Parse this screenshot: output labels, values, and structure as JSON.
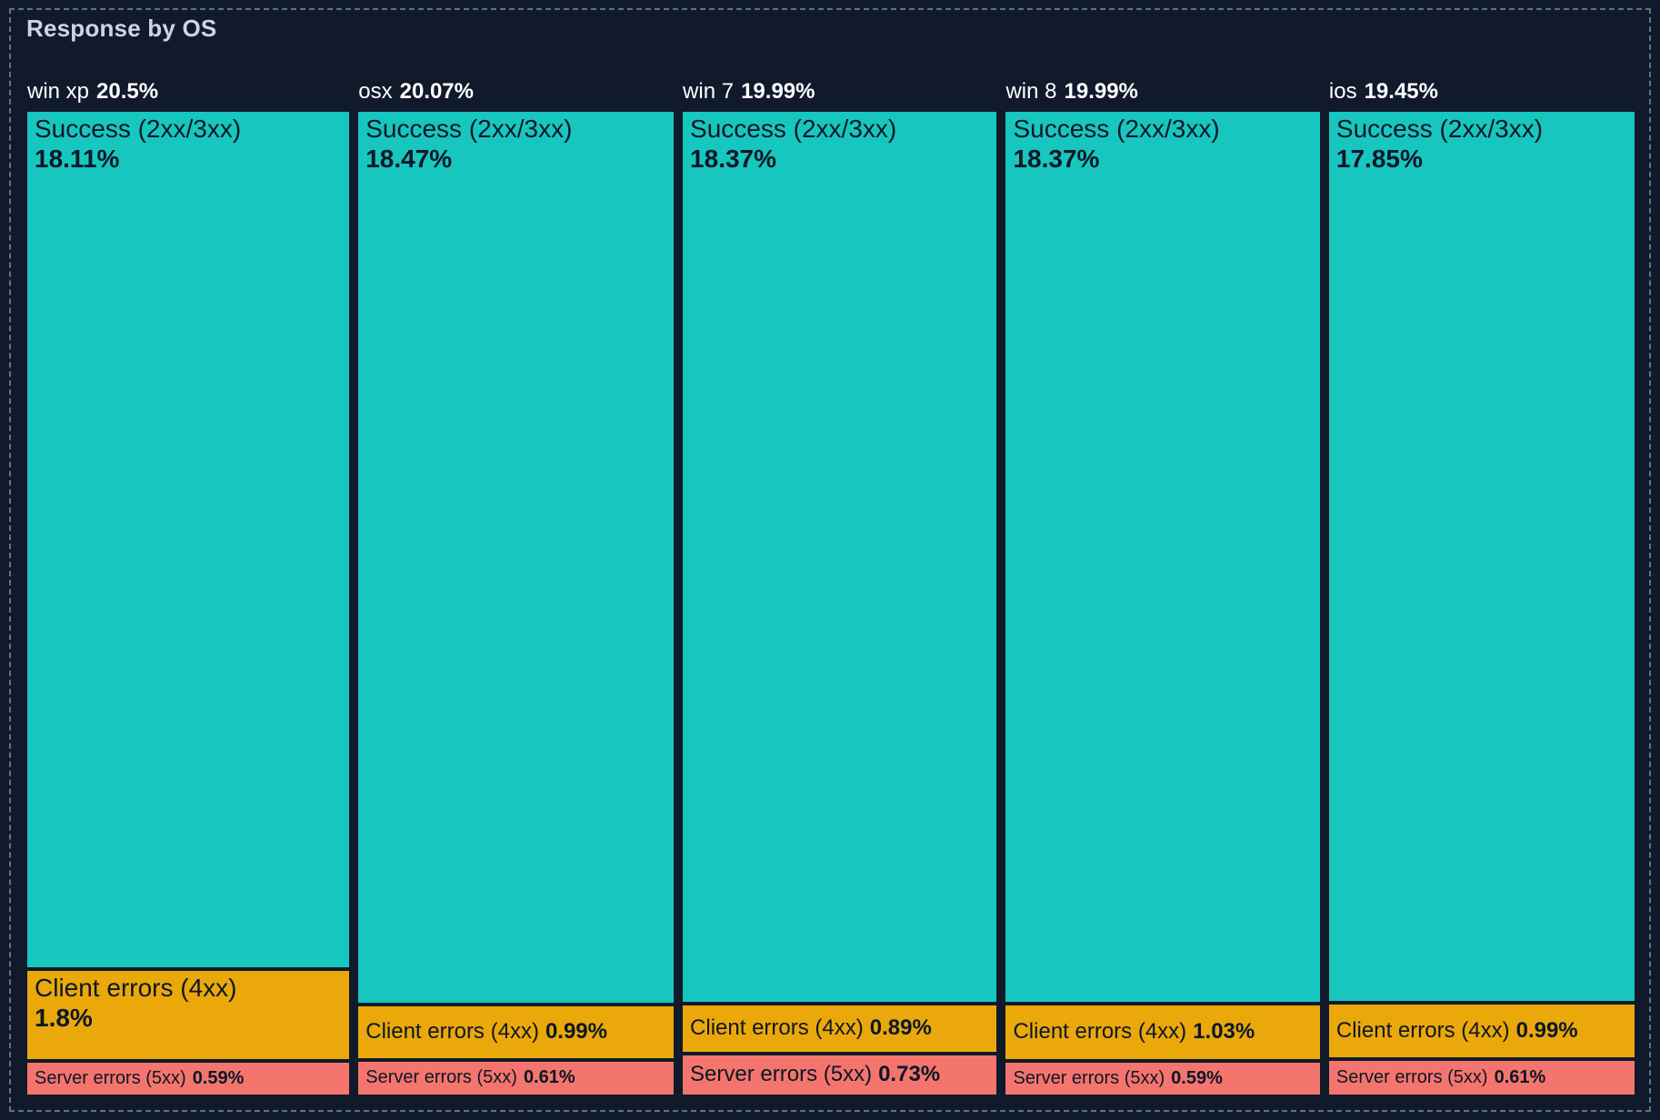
{
  "panel": {
    "title": "Response by OS"
  },
  "colors": {
    "success": "#17c6bf",
    "client": "#eaa80a",
    "server": "#f4756e",
    "background": "#101a2b",
    "border": "#5e7390",
    "title_text": "#ccd6e3",
    "header_text": "#ffffff",
    "segment_text": "#0d1726"
  },
  "chart_data": {
    "type": "treemap",
    "title": "Response by OS",
    "unit": "%",
    "layout_hint": "5 columns, widths proportional to group totals; segments stacked vertically, heights proportional to values; labels inside segments",
    "groups": [
      {
        "name": "win xp",
        "total": 20.5,
        "total_label": "20.5%",
        "segments": [
          {
            "key": "success",
            "label": "Success (2xx/3xx)",
            "value": 18.11,
            "value_label": "18.11%"
          },
          {
            "key": "client",
            "label": "Client errors (4xx)",
            "value": 1.8,
            "value_label": "1.8%"
          },
          {
            "key": "server",
            "label": "Server errors (5xx)",
            "value": 0.59,
            "value_label": "0.59%"
          }
        ]
      },
      {
        "name": "osx",
        "total": 20.07,
        "total_label": "20.07%",
        "segments": [
          {
            "key": "success",
            "label": "Success (2xx/3xx)",
            "value": 18.47,
            "value_label": "18.47%"
          },
          {
            "key": "client",
            "label": "Client errors (4xx)",
            "value": 0.99,
            "value_label": "0.99%"
          },
          {
            "key": "server",
            "label": "Server errors (5xx)",
            "value": 0.61,
            "value_label": "0.61%"
          }
        ]
      },
      {
        "name": "win 7",
        "total": 19.99,
        "total_label": "19.99%",
        "segments": [
          {
            "key": "success",
            "label": "Success (2xx/3xx)",
            "value": 18.37,
            "value_label": "18.37%"
          },
          {
            "key": "client",
            "label": "Client errors (4xx)",
            "value": 0.89,
            "value_label": "0.89%"
          },
          {
            "key": "server",
            "label": "Server errors (5xx)",
            "value": 0.73,
            "value_label": "0.73%"
          }
        ]
      },
      {
        "name": "win 8",
        "total": 19.99,
        "total_label": "19.99%",
        "segments": [
          {
            "key": "success",
            "label": "Success (2xx/3xx)",
            "value": 18.37,
            "value_label": "18.37%"
          },
          {
            "key": "client",
            "label": "Client errors (4xx)",
            "value": 1.03,
            "value_label": "1.03%"
          },
          {
            "key": "server",
            "label": "Server errors (5xx)",
            "value": 0.59,
            "value_label": "0.59%"
          }
        ]
      },
      {
        "name": "ios",
        "total": 19.45,
        "total_label": "19.45%",
        "segments": [
          {
            "key": "success",
            "label": "Success (2xx/3xx)",
            "value": 17.85,
            "value_label": "17.85%"
          },
          {
            "key": "client",
            "label": "Client errors (4xx)",
            "value": 0.99,
            "value_label": "0.99%"
          },
          {
            "key": "server",
            "label": "Server errors (5xx)",
            "value": 0.61,
            "value_label": "0.61%"
          }
        ]
      }
    ]
  }
}
